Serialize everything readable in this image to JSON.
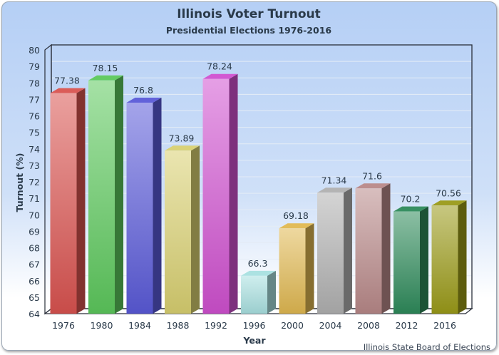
{
  "chart_data": {
    "type": "bar",
    "title": "Illinois Voter Turnout",
    "subtitle": "Presidential Elections 1976-2016",
    "xlabel": "Year",
    "ylabel": "Turnout (%)",
    "ylim": [
      64,
      80
    ],
    "yticks": [
      "64",
      "65",
      "66",
      "67",
      "68",
      "69",
      "70",
      "71",
      "72",
      "73",
      "74",
      "75",
      "76",
      "77",
      "78",
      "79",
      "80"
    ],
    "categories": [
      "1976",
      "1980",
      "1984",
      "1988",
      "1992",
      "1996",
      "2000",
      "2004",
      "2008",
      "2012",
      "2016"
    ],
    "values": [
      77.38,
      78.15,
      76.8,
      73.89,
      78.24,
      66.3,
      69.18,
      71.34,
      71.6,
      70.2,
      70.56
    ],
    "value_labels": [
      "77.38",
      "78.15",
      "76.8",
      "73.89",
      "78.24",
      "66.3",
      "69.18",
      "71.34",
      "71.6",
      "70.2",
      "70.56"
    ],
    "colors": [
      "#d9534f",
      "#5cc85c",
      "#5a5ad8",
      "#d8d070",
      "#d050d0",
      "#a8e0e0",
      "#e0b850",
      "#b0b0b0",
      "#b88888",
      "#2e8a5a",
      "#9a9a18"
    ],
    "grid": true,
    "source": "Illinois State Board of Elections"
  }
}
